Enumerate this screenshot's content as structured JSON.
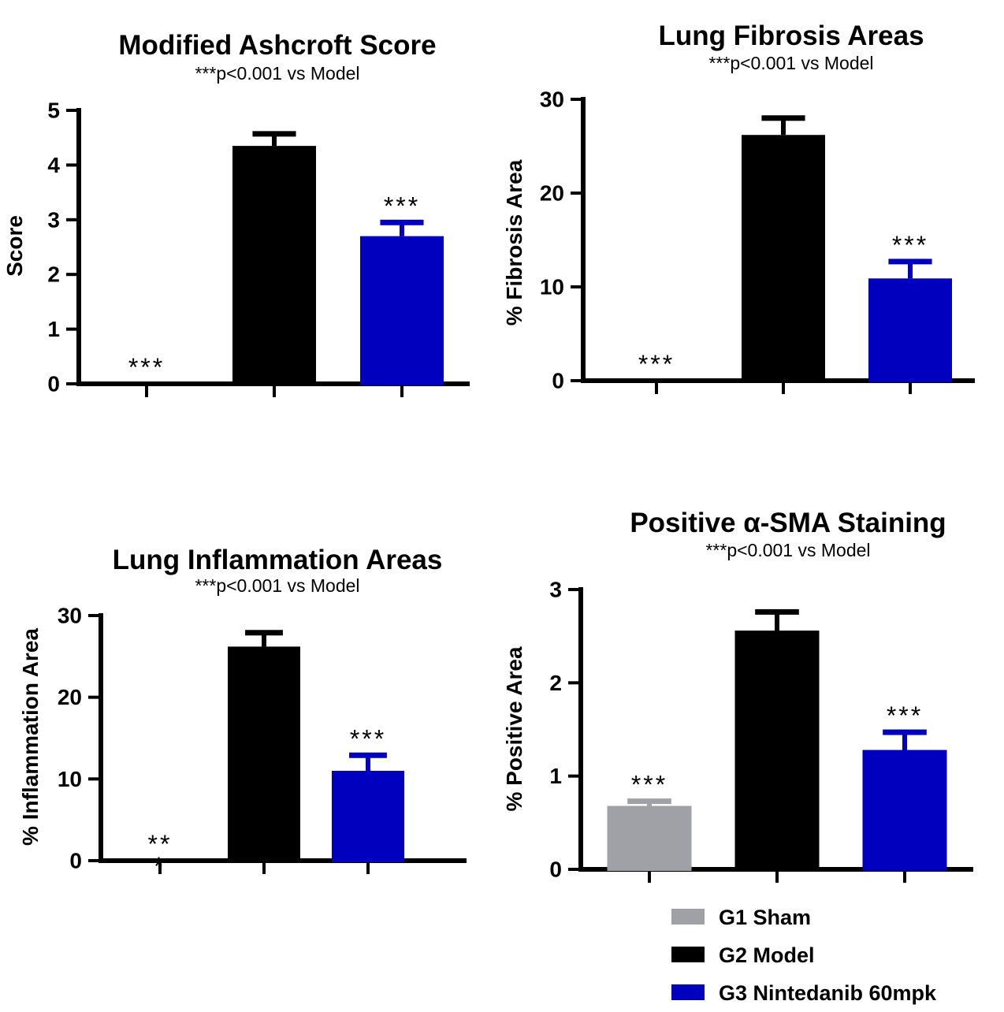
{
  "figure": {
    "background": "#ffffff",
    "legend": {
      "position": "bottom-right",
      "items": [
        {
          "label": "G1 Sham",
          "color": "#a0a1a6"
        },
        {
          "label": "G2 Model",
          "color": "#000000"
        },
        {
          "label": "G3 Nintedanib 60mpk",
          "color": "#0000be"
        }
      ]
    }
  },
  "colors": {
    "sham": "#a0a1a6",
    "model": "#000000",
    "nintedanib": "#0000be",
    "axis": "#000000"
  },
  "chart_data": [
    {
      "type": "bar",
      "title": "Modified Ashcroft Score",
      "subtitle": "***p<0.001 vs Model",
      "xlabel": "",
      "ylabel": "Score",
      "ylim": [
        0,
        5
      ],
      "yticks": [
        0,
        1,
        2,
        3,
        4,
        5
      ],
      "ytick_labels": [
        "0",
        "1",
        "2",
        "3",
        "4",
        "5"
      ],
      "grid": false,
      "legend_position": "none",
      "categories": [
        "G1 Sham",
        "G2 Model",
        "G3 Nintedanib 60mpk"
      ],
      "color_keys": [
        "sham",
        "model",
        "nintedanib"
      ],
      "values": [
        0,
        4.35,
        2.7
      ],
      "errors_top": [
        0,
        4.57,
        2.95
      ],
      "annotations": [
        {
          "group_index": 0,
          "group": "G1 Sham",
          "text": "***",
          "color_key": "sham"
        },
        {
          "group_index": 2,
          "group": "G3 Nintedanib 60mpk",
          "text": "***",
          "color_key": "nintedanib"
        }
      ]
    },
    {
      "type": "bar",
      "title": "Lung Fibrosis Areas",
      "subtitle": "***p<0.001 vs Model",
      "xlabel": "",
      "ylabel": "% Fibrosis Area",
      "ylim": [
        0,
        30
      ],
      "yticks": [
        0,
        10,
        20,
        30
      ],
      "ytick_labels": [
        "0",
        "10",
        "20",
        "30"
      ],
      "grid": false,
      "legend_position": "none",
      "categories": [
        "G1 Sham",
        "G2 Model",
        "G3 Nintedanib 60mpk"
      ],
      "color_keys": [
        "sham",
        "model",
        "nintedanib"
      ],
      "values": [
        0,
        26.2,
        10.9
      ],
      "errors_top": [
        0,
        28.0,
        12.7
      ],
      "annotations": [
        {
          "group_index": 0,
          "group": "G1 Sham",
          "text": "***",
          "color_key": "sham"
        },
        {
          "group_index": 2,
          "group": "G3 Nintedanib 60mpk",
          "text": "***",
          "color_key": "nintedanib"
        }
      ]
    },
    {
      "type": "bar",
      "title": "Lung Inflammation Areas",
      "subtitle": "***p<0.001 vs Model",
      "xlabel": "",
      "ylabel": "% Inflammation Area",
      "ylim": [
        0,
        30
      ],
      "yticks": [
        0,
        10,
        20,
        30
      ],
      "ytick_labels": [
        "0",
        "10",
        "20",
        "30"
      ],
      "grid": false,
      "legend_position": "none",
      "categories": [
        "G1 Sham",
        "G2 Model",
        "G3 Nintedanib 60mpk"
      ],
      "color_keys": [
        "sham",
        "model",
        "nintedanib"
      ],
      "values": [
        0,
        26.2,
        11.0
      ],
      "errors_top": [
        0,
        27.9,
        12.9
      ],
      "annotations": [
        {
          "group_index": 0,
          "group": "G1 Sham",
          "text": "**",
          "text_line2": "*",
          "color_key": "sham"
        },
        {
          "group_index": 2,
          "group": "G3 Nintedanib 60mpk",
          "text": "***",
          "color_key": "nintedanib"
        }
      ]
    },
    {
      "type": "bar",
      "title": "Positive α-SMA Staining",
      "subtitle": "***p<0.001 vs Model",
      "xlabel": "",
      "ylabel": "% Positive Area",
      "ylim": [
        0,
        3
      ],
      "yticks": [
        0,
        1,
        2,
        3
      ],
      "ytick_labels": [
        "0",
        "1",
        "2",
        "3"
      ],
      "grid": false,
      "legend_position": "none",
      "categories": [
        "G1 Sham",
        "G2 Model",
        "G3 Nintedanib 60mpk"
      ],
      "color_keys": [
        "sham",
        "model",
        "nintedanib"
      ],
      "values": [
        0.68,
        2.56,
        1.28
      ],
      "errors_top": [
        0.73,
        2.76,
        1.47
      ],
      "annotations": [
        {
          "group_index": 0,
          "group": "G1 Sham",
          "text": "***",
          "color_key": "sham"
        },
        {
          "group_index": 2,
          "group": "G3 Nintedanib 60mpk",
          "text": "***",
          "color_key": "nintedanib"
        }
      ]
    }
  ]
}
